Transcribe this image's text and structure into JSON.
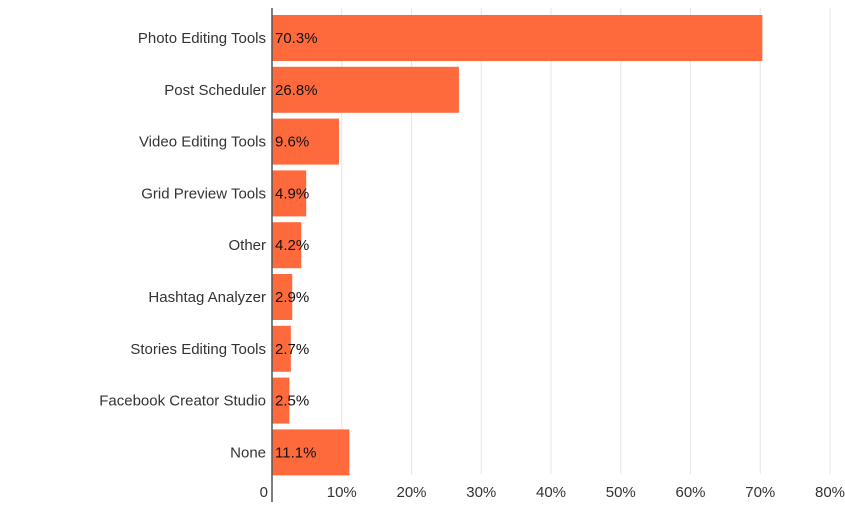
{
  "chart_data": {
    "type": "bar",
    "orientation": "horizontal",
    "categories": [
      "Photo Editing Tools",
      "Post Scheduler",
      "Video Editing Tools",
      "Grid Preview Tools",
      "Other",
      "Hashtag Analyzer",
      "Stories Editing Tools",
      "Facebook Creator Studio",
      "None"
    ],
    "values": [
      70.3,
      26.8,
      9.6,
      4.9,
      4.2,
      2.9,
      2.7,
      2.5,
      11.1
    ],
    "value_labels": [
      "70.3%",
      "26.8%",
      "9.6%",
      "4.9%",
      "4.2%",
      "2.9%",
      "2.7%",
      "2.5%",
      "11.1%"
    ],
    "xlim": [
      0,
      80
    ],
    "x_ticks": [
      0,
      10,
      20,
      30,
      40,
      50,
      60,
      70,
      80
    ],
    "x_tick_labels": [
      "0",
      "10%",
      "20%",
      "30%",
      "40%",
      "50%",
      "60%",
      "70%",
      "80%"
    ],
    "title": "",
    "xlabel": "",
    "ylabel": "",
    "grid": "vertical",
    "legend": "none",
    "bar_color": "#ff6a3d",
    "grid_color": "#e6e6e6",
    "axis_color": "#555555"
  }
}
